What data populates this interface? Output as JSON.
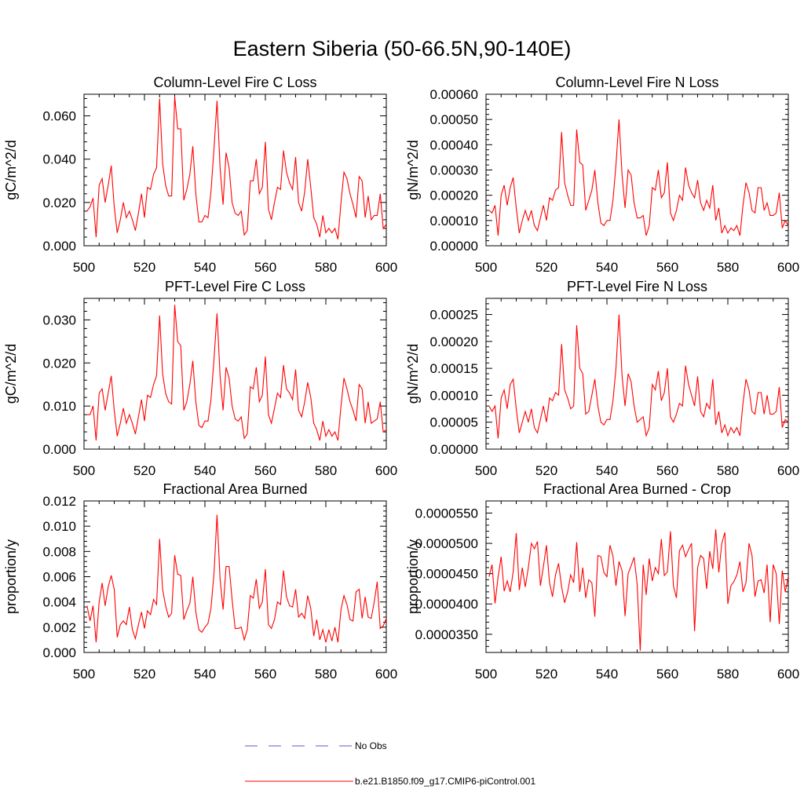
{
  "page_title": "Eastern Siberia (50-66.5N,90-140E)",
  "colors": {
    "series": "#ff0000",
    "obs": "#5a5ad0",
    "axis": "#000000"
  },
  "legend": {
    "obs_label": "No Obs",
    "model_label": "b.e21.B1850.f09_g17.CMIP6-piControl.001"
  },
  "chart_data": [
    {
      "type": "line",
      "title": "Column-Level Fire C Loss",
      "ylabel": "gC/m^2/d",
      "xlabel": "",
      "xlim": [
        500,
        600
      ],
      "ylim": [
        0,
        0.07
      ],
      "x_ticks": [
        "500",
        "520",
        "540",
        "560",
        "580",
        "600"
      ],
      "y_ticks": [
        0,
        0.02,
        0.04,
        0.06
      ],
      "y_tick_labels": [
        "0.000",
        "0.020",
        "0.040",
        "0.060"
      ],
      "x_start": 501,
      "series": [
        {
          "name": "b.e21.B1850.f09_g17.CMIP6-piControl.001",
          "values": [
            0.016,
            0.018,
            0.022,
            0.004,
            0.028,
            0.031,
            0.02,
            0.028,
            0.037,
            0.018,
            0.006,
            0.012,
            0.02,
            0.013,
            0.016,
            0.012,
            0.007,
            0.015,
            0.024,
            0.013,
            0.027,
            0.026,
            0.033,
            0.036,
            0.068,
            0.038,
            0.028,
            0.023,
            0.023,
            0.069,
            0.054,
            0.054,
            0.021,
            0.026,
            0.033,
            0.046,
            0.024,
            0.011,
            0.011,
            0.014,
            0.013,
            0.025,
            0.045,
            0.067,
            0.036,
            0.019,
            0.043,
            0.036,
            0.02,
            0.015,
            0.014,
            0.016,
            0.005,
            0.007,
            0.03,
            0.03,
            0.04,
            0.024,
            0.027,
            0.048,
            0.017,
            0.012,
            0.02,
            0.027,
            0.026,
            0.044,
            0.034,
            0.029,
            0.026,
            0.041,
            0.02,
            0.016,
            0.025,
            0.04,
            0.027,
            0.013,
            0.01,
            0.004,
            0.014,
            0.006,
            0.008,
            0.006,
            0.008,
            0.003,
            0.02,
            0.034,
            0.031,
            0.024,
            0.019,
            0.013,
            0.032,
            0.03,
            0.013,
            0.023,
            0.012,
            0.014,
            0.014,
            0.024,
            0.008,
            0.01,
            0.014
          ]
        }
      ]
    },
    {
      "type": "line",
      "title": "Column-Level Fire N Loss",
      "ylabel": "gN/m^2/d",
      "xlabel": "",
      "xlim": [
        500,
        600
      ],
      "ylim": [
        0,
        0.0006
      ],
      "x_ticks": [
        "500",
        "520",
        "540",
        "560",
        "580",
        "600"
      ],
      "y_ticks": [
        0,
        0.0001,
        0.0002,
        0.0003,
        0.0004,
        0.0005,
        0.0006
      ],
      "y_tick_labels": [
        "0.00000",
        "0.00010",
        "0.00020",
        "0.00030",
        "0.00040",
        "0.00050",
        "0.00060"
      ],
      "x_start": 501,
      "series": [
        {
          "name": "b.e21.B1850.f09_g17.CMIP6-piControl.001",
          "values": [
            0.00014,
            0.00013,
            0.00016,
            4e-05,
            0.0002,
            0.00024,
            0.00016,
            0.00023,
            0.00027,
            0.00015,
            5e-05,
            0.0001,
            0.00014,
            0.0001,
            0.00014,
            8e-05,
            6e-05,
            0.00011,
            0.00016,
            0.0001,
            0.00019,
            0.00018,
            0.00022,
            0.00023,
            0.00045,
            0.00025,
            0.0002,
            0.00016,
            0.00016,
            0.00046,
            0.00033,
            0.00032,
            0.00014,
            0.00018,
            0.00022,
            0.0003,
            0.00017,
            9e-05,
            8e-05,
            0.0001,
            0.0001,
            0.00018,
            0.00032,
            0.0005,
            0.00028,
            0.00015,
            0.0003,
            0.00028,
            0.00017,
            0.00011,
            0.00011,
            0.00012,
            4e-05,
            8e-05,
            0.00023,
            0.00022,
            0.0003,
            0.00019,
            0.00021,
            0.00033,
            0.00013,
            0.0001,
            0.00014,
            0.0002,
            0.00018,
            0.00031,
            0.00024,
            0.00021,
            0.00019,
            0.00026,
            0.00017,
            0.00014,
            0.00018,
            0.00015,
            0.00024,
            0.0001,
            0.00015,
            5e-05,
            8e-05,
            5e-05,
            7e-05,
            6e-05,
            8e-05,
            4e-05,
            0.00016,
            0.00025,
            0.00021,
            0.00014,
            0.00013,
            0.00023,
            0.00023,
            0.00014,
            0.00017,
            0.00012,
            0.00012,
            0.00013,
            0.00021,
            7e-05,
            0.0001,
            8e-05,
            0.00011
          ]
        }
      ]
    },
    {
      "type": "line",
      "title": "PFT-Level Fire C Loss",
      "ylabel": "gC/m^2/d",
      "xlabel": "",
      "xlim": [
        500,
        600
      ],
      "ylim": [
        0,
        0.035
      ],
      "x_ticks": [
        "500",
        "520",
        "540",
        "560",
        "580",
        "600"
      ],
      "y_ticks": [
        0,
        0.01,
        0.02,
        0.03
      ],
      "y_tick_labels": [
        "0.000",
        "0.010",
        "0.020",
        "0.030"
      ],
      "x_start": 501,
      "series": [
        {
          "name": "b.e21.B1850.f09_g17.CMIP6-piControl.001",
          "values": [
            0.008,
            0.008,
            0.01,
            0.002,
            0.013,
            0.014,
            0.009,
            0.013,
            0.017,
            0.009,
            0.003,
            0.006,
            0.0095,
            0.006,
            0.008,
            0.006,
            0.0035,
            0.0075,
            0.0115,
            0.0065,
            0.0125,
            0.012,
            0.015,
            0.017,
            0.031,
            0.0175,
            0.013,
            0.011,
            0.0105,
            0.0335,
            0.025,
            0.024,
            0.009,
            0.011,
            0.015,
            0.0205,
            0.011,
            0.0055,
            0.005,
            0.0065,
            0.0065,
            0.0115,
            0.021,
            0.0315,
            0.017,
            0.009,
            0.019,
            0.0165,
            0.01,
            0.007,
            0.0065,
            0.0075,
            0.0025,
            0.0035,
            0.0145,
            0.014,
            0.019,
            0.011,
            0.0125,
            0.0215,
            0.008,
            0.006,
            0.0095,
            0.013,
            0.012,
            0.0195,
            0.014,
            0.013,
            0.0115,
            0.0185,
            0.009,
            0.0075,
            0.011,
            0.0155,
            0.012,
            0.006,
            0.0045,
            0.002,
            0.0065,
            0.003,
            0.0045,
            0.003,
            0.004,
            0.002,
            0.01,
            0.0165,
            0.014,
            0.011,
            0.009,
            0.0065,
            0.015,
            0.014,
            0.006,
            0.011,
            0.006,
            0.0065,
            0.007,
            0.011,
            0.004,
            0.0045,
            0.0065
          ]
        }
      ]
    },
    {
      "type": "line",
      "title": "PFT-Level Fire N Loss",
      "ylabel": "gN/m^2/d",
      "xlabel": "",
      "xlim": [
        500,
        600
      ],
      "ylim": [
        0,
        0.00028
      ],
      "x_ticks": [
        "500",
        "520",
        "540",
        "560",
        "580",
        "600"
      ],
      "y_ticks": [
        0,
        5e-05,
        0.0001,
        0.00015,
        0.0002,
        0.00025
      ],
      "y_tick_labels": [
        "0.00000",
        "0.00005",
        "0.00010",
        "0.00015",
        "0.00020",
        "0.00025"
      ],
      "x_start": 501,
      "series": [
        {
          "name": "b.e21.B1850.f09_g17.CMIP6-piControl.001",
          "values": [
            8e-05,
            7e-05,
            8e-05,
            2e-05,
            9.5e-05,
            0.00011,
            7.5e-05,
            0.00012,
            0.00013,
            7.5e-05,
            3e-05,
            5e-05,
            7e-05,
            5e-05,
            7.5e-05,
            4e-05,
            3e-05,
            5.5e-05,
            8e-05,
            5e-05,
            9.5e-05,
            9e-05,
            0.000105,
            0.0001,
            0.000195,
            0.00011,
            9.5e-05,
            7.5e-05,
            8e-05,
            0.00023,
            0.00015,
            0.00014,
            6.5e-05,
            7e-05,
            0.0001,
            0.00013,
            8e-05,
            5e-05,
            4.5e-05,
            5.5e-05,
            5.5e-05,
            9e-05,
            0.00015,
            0.00025,
            0.000135,
            8e-05,
            0.00014,
            0.000125,
            8e-05,
            5e-05,
            5.5e-05,
            6e-05,
            2.5e-05,
            4e-05,
            0.00012,
            0.00011,
            0.000145,
            9e-05,
            0.000105,
            0.00015,
            6e-05,
            5e-05,
            6.5e-05,
            8.5e-05,
            8e-05,
            0.000155,
            0.00012,
            0.0001,
            8e-05,
            0.000135,
            7e-05,
            6e-05,
            8.5e-05,
            7.5e-05,
            0.00013,
            4.5e-05,
            7e-05,
            3e-05,
            4.5e-05,
            2.5e-05,
            4e-05,
            3e-05,
            4e-05,
            2.5e-05,
            8.5e-05,
            0.00013,
            0.00011,
            7e-05,
            6.5e-05,
            0.000105,
            0.000105,
            6.5e-05,
            0.0001,
            6.5e-05,
            6.5e-05,
            7e-05,
            0.000115,
            4e-05,
            5.5e-05,
            5e-05,
            4e-05
          ]
        }
      ]
    },
    {
      "type": "line",
      "title": "Fractional Area Burned",
      "ylabel": "proportion/y",
      "xlabel": "",
      "xlim": [
        500,
        600
      ],
      "ylim": [
        0,
        0.012
      ],
      "x_ticks": [
        "500",
        "520",
        "540",
        "560",
        "580",
        "600"
      ],
      "y_ticks": [
        0,
        0.002,
        0.004,
        0.006,
        0.008,
        0.01,
        0.012
      ],
      "y_tick_labels": [
        "0.000",
        "0.002",
        "0.004",
        "0.006",
        "0.008",
        "0.010",
        "0.012"
      ],
      "x_start": 501,
      "series": [
        {
          "name": "b.e21.B1850.f09_g17.CMIP6-piControl.001",
          "values": [
            0.0037,
            0.0025,
            0.0037,
            0.0008,
            0.004,
            0.0055,
            0.0037,
            0.0052,
            0.0061,
            0.005,
            0.0012,
            0.0022,
            0.0025,
            0.0022,
            0.0036,
            0.0018,
            0.0011,
            0.0022,
            0.0032,
            0.0019,
            0.0033,
            0.003,
            0.0042,
            0.0038,
            0.009,
            0.005,
            0.0037,
            0.0028,
            0.0031,
            0.0077,
            0.0062,
            0.0061,
            0.0026,
            0.0033,
            0.0039,
            0.006,
            0.0032,
            0.0018,
            0.0016,
            0.002,
            0.0023,
            0.0035,
            0.0063,
            0.0109,
            0.0058,
            0.0034,
            0.0068,
            0.0068,
            0.0042,
            0.0019,
            0.0019,
            0.002,
            0.001,
            0.0018,
            0.0045,
            0.0043,
            0.0058,
            0.0035,
            0.004,
            0.0066,
            0.0022,
            0.0019,
            0.0026,
            0.004,
            0.0038,
            0.0065,
            0.0044,
            0.0037,
            0.0036,
            0.005,
            0.0028,
            0.0031,
            0.0027,
            0.0045,
            0.0035,
            0.0013,
            0.0026,
            0.001,
            0.0018,
            0.0008,
            0.0018,
            0.0009,
            0.002,
            0.0008,
            0.0034,
            0.0045,
            0.0038,
            0.0026,
            0.0025,
            0.0048,
            0.005,
            0.0027,
            0.0044,
            0.0028,
            0.0027,
            0.004,
            0.0056,
            0.0019,
            0.0021,
            0.0027,
            0.002
          ]
        }
      ]
    },
    {
      "type": "line",
      "title": "Fractional Area Burned - Crop",
      "ylabel": "proportion/y",
      "xlabel": "",
      "xlim": [
        500,
        600
      ],
      "ylim": [
        3.2e-05,
        5.7e-05
      ],
      "x_ticks": [
        "500",
        "520",
        "540",
        "560",
        "580",
        "600"
      ],
      "y_ticks": [
        3.5e-05,
        4e-05,
        4.5e-05,
        5e-05,
        5.5e-05
      ],
      "y_tick_labels": [
        "0.0000350",
        "0.0000400",
        "0.0000450",
        "0.0000500",
        "0.0000550"
      ],
      "x_start": 501,
      "series": [
        {
          "name": "b.e21.B1850.f09_g17.CMIP6-piControl.001",
          "values": [
            4.45e-05,
            4.65e-05,
            4.01e-05,
            4.45e-05,
            4.78e-05,
            4.21e-05,
            4.38e-05,
            4.2e-05,
            4.53e-05,
            5.17e-05,
            4.23e-05,
            4.6e-05,
            4.28e-05,
            4.6e-05,
            5e-05,
            4.91e-05,
            5.03e-05,
            4.3e-05,
            4.62e-05,
            4.97e-05,
            4.35e-05,
            4.12e-05,
            4.48e-05,
            4.67e-05,
            4.28e-05,
            4.02e-05,
            4.2e-05,
            4.48e-05,
            4.35e-05,
            5.02e-05,
            4.2e-05,
            4.6e-05,
            4.1e-05,
            4.4e-05,
            4.35e-05,
            3.79e-05,
            4.8e-05,
            4.78e-05,
            4.52e-05,
            4.45e-05,
            4.97e-05,
            4.79e-05,
            4.3e-05,
            4.7e-05,
            4.55e-05,
            3.8e-05,
            4.5e-05,
            4.63e-05,
            4.77e-05,
            4.33e-05,
            3.23e-05,
            4.65e-05,
            4.15e-05,
            4.75e-05,
            4.38e-05,
            4.6e-05,
            4.5e-05,
            5.07e-05,
            4.47e-05,
            4.53e-05,
            5.2e-05,
            4.3e-05,
            4.1e-05,
            4.88e-05,
            4.97e-05,
            4.78e-05,
            4.9e-05,
            5e-05,
            3.55e-05,
            4.6e-05,
            4.8e-05,
            4.75e-05,
            4.25e-05,
            4.87e-05,
            4.58e-05,
            5.23e-05,
            4.52e-05,
            5e-05,
            5.18e-05,
            4e-05,
            4.3e-05,
            4.37e-05,
            4.48e-05,
            4.7e-05,
            4.2e-05,
            4.35e-05,
            5e-05,
            4.8e-05,
            4.12e-05,
            4.38e-05,
            4.4e-05,
            4.18e-05,
            4.65e-05,
            3.7e-05,
            4.65e-05,
            4.5e-05,
            3.67e-05,
            4.55e-05,
            4.2e-05,
            4.45e-05,
            4.6e-05
          ]
        }
      ]
    }
  ]
}
